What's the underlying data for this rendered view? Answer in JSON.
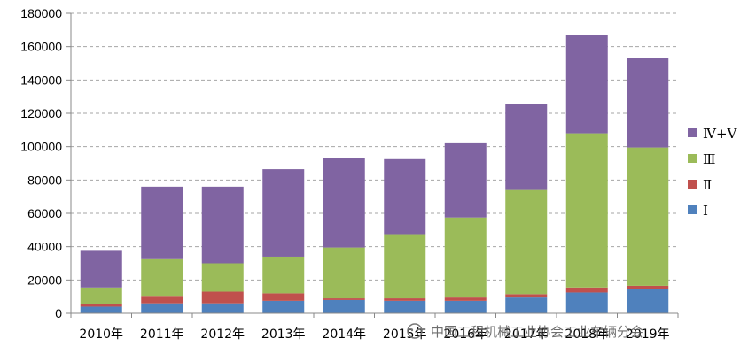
{
  "chart_data": {
    "type": "bar",
    "stacked": true,
    "title": "",
    "xlabel": "",
    "ylabel": "",
    "categories": [
      "2010年",
      "2011年",
      "2012年",
      "2013年",
      "2014年",
      "2015年",
      "2016年",
      "2017年",
      "2018年",
      "2019年"
    ],
    "ylim": [
      0,
      180000
    ],
    "yticks": [
      0,
      20000,
      40000,
      60000,
      80000,
      100000,
      120000,
      140000,
      160000,
      180000
    ],
    "grid": true,
    "legend_position": "right",
    "series": [
      {
        "name": "Ⅰ",
        "color": "#4f81bd",
        "values": [
          4000,
          6000,
          6000,
          7500,
          8000,
          7500,
          7500,
          9500,
          12500,
          14500
        ]
      },
      {
        "name": "Ⅱ",
        "color": "#c0504d",
        "values": [
          1500,
          4500,
          7000,
          4500,
          1000,
          1500,
          2000,
          2000,
          3000,
          2000
        ]
      },
      {
        "name": "Ⅲ",
        "color": "#9bbb59",
        "values": [
          10000,
          22000,
          17000,
          22000,
          30500,
          38500,
          48000,
          62500,
          92500,
          83000
        ]
      },
      {
        "name": "Ⅳ+Ⅴ",
        "color": "#8064a2",
        "values": [
          22000,
          43500,
          46000,
          52500,
          53500,
          45000,
          44500,
          51500,
          59000,
          53500
        ]
      }
    ]
  },
  "watermark": {
    "icon": "wechat-icon",
    "text": "中国工程机械工业协会工业车辆分会"
  }
}
